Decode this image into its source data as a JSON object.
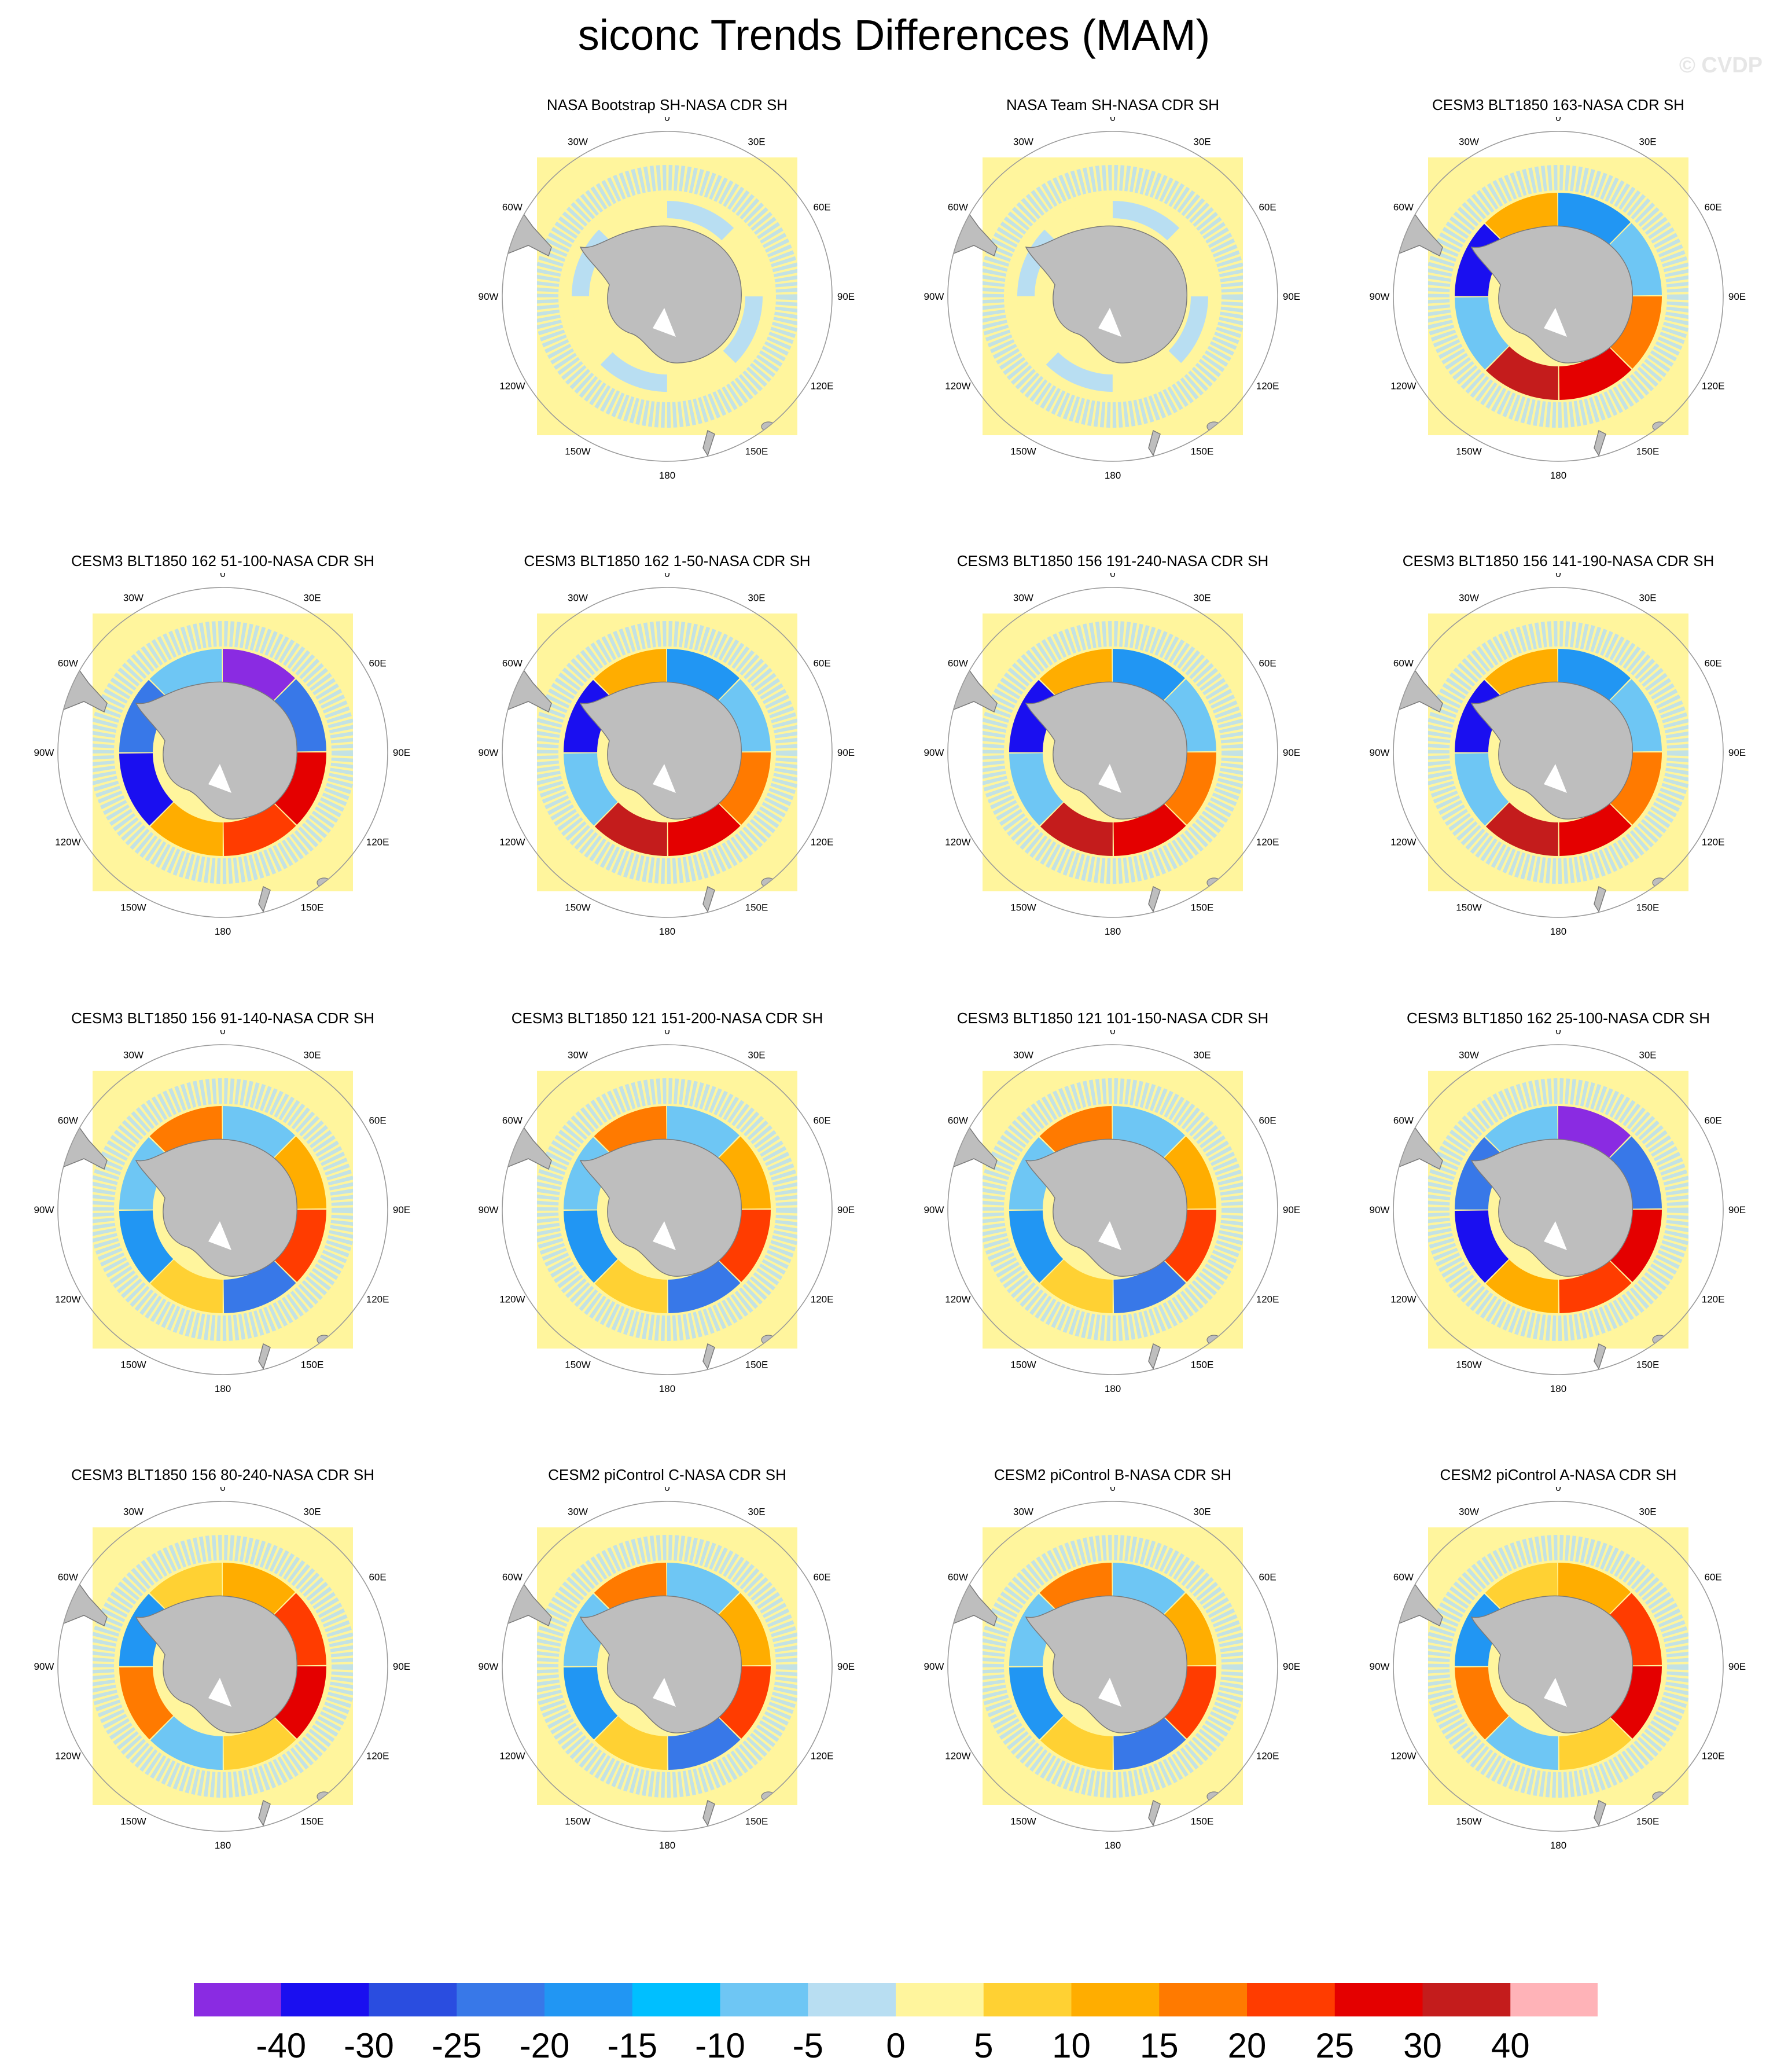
{
  "figure": {
    "title": "siconc Trends Differences (MAM)",
    "watermark": "© CVDP"
  },
  "map": {
    "lon_labels": [
      "0",
      "30E",
      "60E",
      "90E",
      "120E",
      "150E",
      "180",
      "150W",
      "120W",
      "90W",
      "60W",
      "30W"
    ]
  },
  "chart_data": {
    "type": "map-panels",
    "variable": "siconc",
    "season": "MAM",
    "projection": "south polar stereographic",
    "colorbar": {
      "levels": [
        -40,
        -30,
        -25,
        -20,
        -15,
        -10,
        -5,
        0,
        5,
        10,
        15,
        20,
        25,
        30,
        40
      ],
      "labels": [
        "-40",
        "-30",
        "-25",
        "-20",
        "-15",
        "-10",
        "-5",
        "0",
        "5",
        "10",
        "15",
        "20",
        "25",
        "30",
        "40"
      ],
      "colors": [
        "#8a2be2",
        "#1a0ff0",
        "#2a4de0",
        "#3878e8",
        "#2196f3",
        "#00bfff",
        "#6ec6f4",
        "#b8def2",
        "#fff59d",
        "#ffd133",
        "#ffad00",
        "#ff7a00",
        "#ff3c00",
        "#e40000",
        "#c41c1c",
        "#ffb3b8"
      ]
    },
    "panels": [
      {
        "title": "NASA Bootstrap SH-NASA CDR SH",
        "pattern": "weak"
      },
      {
        "title": "NASA Team SH-NASA CDR SH",
        "pattern": "weak"
      },
      {
        "title": "CESM3 BLT1850 163-NASA CDR SH",
        "pattern": "strong"
      },
      {
        "title": "CESM3 BLT1850 162 51-100-NASA CDR SH",
        "pattern": "purple"
      },
      {
        "title": "CESM3 BLT1850 162 1-50-NASA CDR SH",
        "pattern": "strong"
      },
      {
        "title": "CESM3 BLT1850 156 191-240-NASA CDR SH",
        "pattern": "strong"
      },
      {
        "title": "CESM3 BLT1850 156 141-190-NASA CDR SH",
        "pattern": "strong"
      },
      {
        "title": "CESM3 BLT1850 156 91-140-NASA CDR SH",
        "pattern": "moderate"
      },
      {
        "title": "CESM3 BLT1850 121 151-200-NASA CDR SH",
        "pattern": "moderate"
      },
      {
        "title": "CESM3 BLT1850 121 101-150-NASA CDR SH",
        "pattern": "moderate"
      },
      {
        "title": "CESM3 BLT1850 162 25-100-NASA CDR SH",
        "pattern": "purple"
      },
      {
        "title": "CESM3 BLT1850 156 80-240-NASA CDR SH",
        "pattern": "warm"
      },
      {
        "title": "CESM2 piControl C-NASA CDR SH",
        "pattern": "moderate"
      },
      {
        "title": "CESM2 piControl B-NASA CDR SH",
        "pattern": "moderate"
      },
      {
        "title": "CESM2 piControl A-NASA CDR SH",
        "pattern": "warm"
      }
    ]
  }
}
